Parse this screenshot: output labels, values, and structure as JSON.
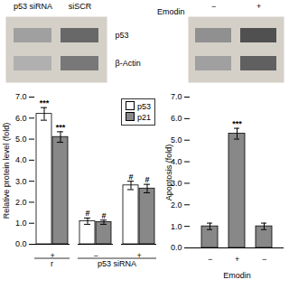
{
  "chart_data": [
    {
      "type": "blot",
      "categories": [
        "p53 siRNA",
        "siSCR"
      ],
      "series": [
        {
          "name": "p53",
          "colors": [
            "#a0a0a0",
            "#686868"
          ]
        },
        {
          "name": "β-Actin",
          "colors": [
            "#b0b0b0",
            "#787878"
          ]
        }
      ]
    },
    {
      "type": "blot",
      "xlabel": "Emodin",
      "categories": [
        "−",
        "+"
      ],
      "series": [
        {
          "colors": [
            "#909090",
            "#505050"
          ]
        },
        {
          "colors": [
            "#a0a0a0",
            "#606060"
          ]
        }
      ]
    },
    {
      "type": "bar",
      "categories": [
        "+",
        "−",
        "+"
      ],
      "ylabel": "Relative protein level (fold)",
      "ylim": [
        0,
        7
      ],
      "yticks": [
        0,
        1,
        2,
        3,
        4,
        5,
        6,
        7
      ],
      "grid": false,
      "legend": "top-right",
      "series": [
        {
          "name": "p53",
          "color": "white",
          "values": [
            6.2,
            1.1,
            2.8
          ],
          "errors": [
            0.3,
            0.15,
            0.2
          ],
          "annotations": [
            "***",
            "#",
            "#"
          ]
        },
        {
          "name": "p21",
          "color": "#888888",
          "values": [
            5.1,
            1.05,
            2.65
          ],
          "errors": [
            0.25,
            0.1,
            0.2
          ],
          "annotations": [
            "***",
            "#",
            "#"
          ]
        }
      ],
      "group_labels": [
        {
          "text": "r",
          "from": 0,
          "to": 0
        },
        {
          "text": "p53 siRNA",
          "from": 1,
          "to": 2
        }
      ]
    },
    {
      "type": "bar",
      "categories": [
        "−",
        "+",
        "−"
      ],
      "values": [
        1.0,
        5.3,
        1.0
      ],
      "errors": [
        0.15,
        0.25,
        0.15
      ],
      "annotations": [
        null,
        "***",
        null
      ],
      "color": "#888888",
      "xlabel": "Emodin",
      "ylabel": "Apoptosis (fold)",
      "ylim": [
        0,
        7
      ],
      "yticks": [
        0,
        1,
        2,
        3,
        4,
        5,
        6,
        7
      ],
      "grid": false
    }
  ]
}
